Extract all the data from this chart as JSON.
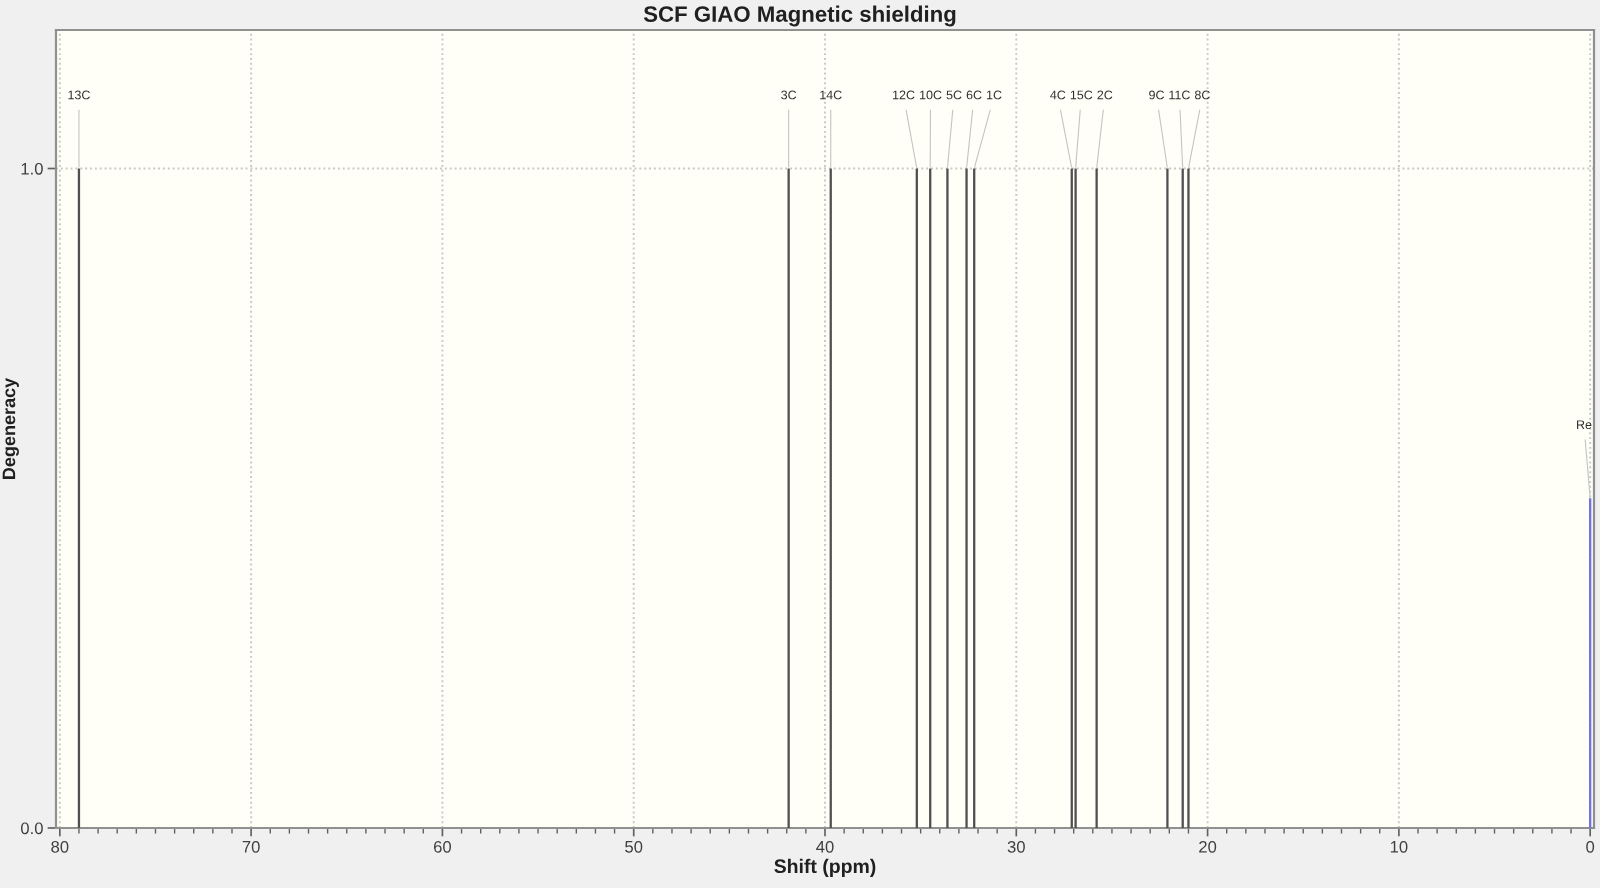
{
  "chart_data": {
    "type": "bar",
    "title": "SCF GIAO Magnetic shielding",
    "xlabel": "Shift (ppm)",
    "ylabel": "Degeneracy",
    "xlim": [
      80.2,
      -0.2
    ],
    "xticks": [
      80,
      70,
      60,
      50,
      40,
      30,
      20,
      10,
      0
    ],
    "ylim": [
      0,
      1.21
    ],
    "yticks": [
      {
        "value": 0,
        "label": "0.0"
      },
      {
        "value": 1,
        "label": "1.0"
      }
    ],
    "grid": true,
    "legend": false,
    "series": [
      {
        "color": "#505050",
        "x": [
          79.0,
          41.9,
          39.7,
          35.2,
          34.5,
          33.6,
          32.6,
          32.2,
          27.1,
          26.9,
          25.8,
          22.1,
          21.3,
          21.0
        ],
        "values": [
          1,
          1,
          1,
          1,
          1,
          1,
          1,
          1,
          1,
          1,
          1,
          1,
          1,
          1
        ]
      },
      {
        "color": "#7070e0",
        "x": [
          0.0
        ],
        "values": [
          0.5
        ]
      }
    ],
    "annotations": [
      {
        "text": "13C",
        "x": 79.0,
        "y": 1
      },
      {
        "text": "3C",
        "x": 41.9,
        "y": 1
      },
      {
        "text": "14C",
        "x": 39.7,
        "y": 1
      },
      {
        "text": "12C",
        "x": 35.2,
        "y": 1
      },
      {
        "text": "10C",
        "x": 34.5,
        "y": 1
      },
      {
        "text": "5C",
        "x": 33.6,
        "y": 1
      },
      {
        "text": "6C",
        "x": 32.6,
        "y": 1
      },
      {
        "text": "1C",
        "x": 32.2,
        "y": 1
      },
      {
        "text": "4C",
        "x": 27.1,
        "y": 1
      },
      {
        "text": "15C",
        "x": 26.9,
        "y": 1
      },
      {
        "text": "2C",
        "x": 25.8,
        "y": 1
      },
      {
        "text": "9C",
        "x": 22.1,
        "y": 1
      },
      {
        "text": "11C",
        "x": 21.3,
        "y": 1
      },
      {
        "text": "8C",
        "x": 21.0,
        "y": 1
      },
      {
        "text": "Re",
        "x": 0.0,
        "y": 0.5
      }
    ]
  }
}
